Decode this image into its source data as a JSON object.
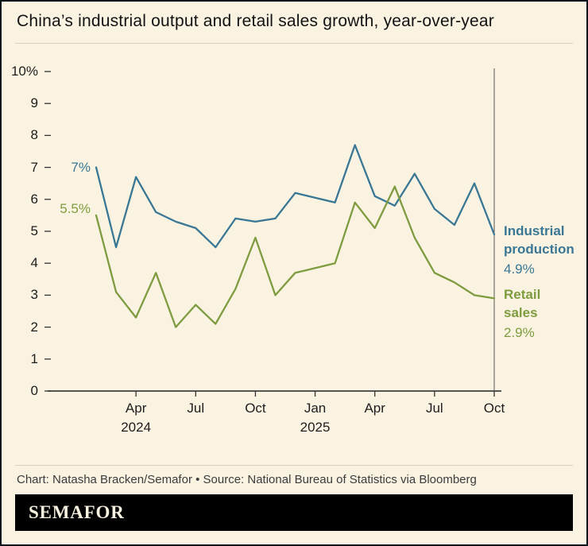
{
  "title": "China’s industrial output and retail sales growth, year-over-year",
  "footer": {
    "credit": "Chart: Natasha Bracken/Semafor • Source: National Bureau of Statistics via Bloomberg",
    "brand": "SEMAFOR"
  },
  "annotations": {
    "industrial_start": "7%",
    "retail_start": "5.5%",
    "industrial_label": "Industrial production",
    "industrial_end": "4.9%",
    "retail_label": "Retail sales",
    "retail_end": "2.9%"
  },
  "colors": {
    "industrial": "#3a7795",
    "retail": "#7e9c3f",
    "background": "#faf3e2",
    "axis": "#333333",
    "baseline": "#222222",
    "end_marker": "#555555",
    "bar_bg": "#000000",
    "bar_text": "#f7f1df"
  },
  "chart_data": {
    "type": "line",
    "x_slots": 22,
    "x_index": [
      1,
      2,
      3,
      4,
      5,
      6,
      7,
      8,
      9,
      10,
      11,
      13,
      14,
      15,
      16,
      17,
      18,
      19,
      20,
      21
    ],
    "categories": [
      "Jan-Feb 2024",
      "Mar 2024",
      "Apr 2024",
      "May 2024",
      "Jun 2024",
      "Jul 2024",
      "Aug 2024",
      "Sep 2024",
      "Oct 2024",
      "Nov 2024",
      "Dec 2024",
      "Jan-Feb 2025",
      "Mar 2025",
      "Apr 2025",
      "May 2025",
      "Jun 2025",
      "Jul 2025",
      "Aug 2025",
      "Sep 2025",
      "Oct 2025"
    ],
    "series": [
      {
        "name": "Industrial production",
        "color_key": "industrial",
        "values": [
          7.0,
          4.5,
          6.7,
          5.6,
          5.3,
          5.1,
          4.5,
          5.4,
          5.3,
          5.4,
          6.2,
          5.9,
          7.7,
          6.1,
          5.8,
          6.8,
          5.7,
          5.2,
          6.5,
          4.9
        ]
      },
      {
        "name": "Retail sales",
        "color_key": "retail",
        "values": [
          5.5,
          3.1,
          2.3,
          3.7,
          2.0,
          2.7,
          2.1,
          3.2,
          4.8,
          3.0,
          3.7,
          4.0,
          5.9,
          5.1,
          6.4,
          4.8,
          3.7,
          3.4,
          3.0,
          2.9
        ]
      }
    ],
    "ylim": [
      0,
      10
    ],
    "yticks": [
      {
        "v": 10,
        "label": "10%"
      },
      {
        "v": 9,
        "label": "9"
      },
      {
        "v": 8,
        "label": "8"
      },
      {
        "v": 7,
        "label": "7"
      },
      {
        "v": 6,
        "label": "6"
      },
      {
        "v": 5,
        "label": "5"
      },
      {
        "v": 4,
        "label": "4"
      },
      {
        "v": 3,
        "label": "3"
      },
      {
        "v": 2,
        "label": "2"
      },
      {
        "v": 1,
        "label": "1"
      },
      {
        "v": 0,
        "label": "0"
      }
    ],
    "xticks": [
      {
        "slot": 3,
        "label": "Apr"
      },
      {
        "slot": 6,
        "label": "Jul"
      },
      {
        "slot": 9,
        "label": "Oct"
      },
      {
        "slot": 12,
        "label": "Jan"
      },
      {
        "slot": 15,
        "label": "Apr"
      },
      {
        "slot": 18,
        "label": "Jul"
      },
      {
        "slot": 21,
        "label": "Oct"
      }
    ],
    "year_labels": [
      {
        "slot": 3,
        "label": "2024"
      },
      {
        "slot": 12,
        "label": "2025"
      }
    ],
    "grid": false,
    "legend_position": "right-inline",
    "title": "China’s industrial output and retail sales growth, year-over-year",
    "xlabel": "",
    "ylabel": ""
  }
}
